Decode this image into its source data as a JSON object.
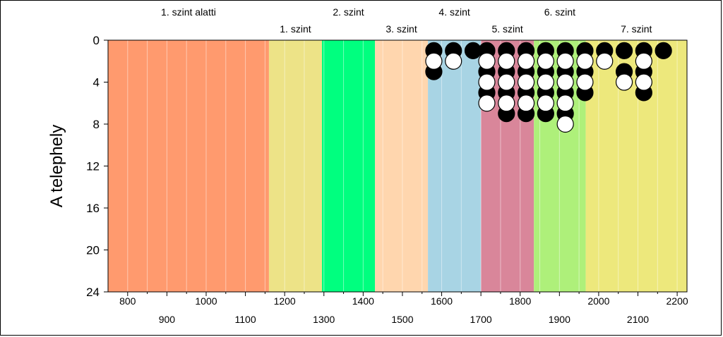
{
  "chart_data": {
    "type": "scatter",
    "title": "",
    "ylabel": "A telephely",
    "xlabel": "",
    "xlim": [
      750,
      2225
    ],
    "ylim": [
      0,
      24
    ],
    "y_inverted": true,
    "y_ticks": [
      0,
      4,
      8,
      12,
      16,
      20,
      24
    ],
    "x_ticks_lower": [
      800,
      1000,
      1200,
      1400,
      1600,
      1800,
      2000,
      2200
    ],
    "x_ticks_upper": [
      900,
      1100,
      1300,
      1500,
      1700,
      1900,
      2100
    ],
    "minor_gridlines": true,
    "levels": [
      {
        "label": "1. szint alatti",
        "start": 750,
        "end": 1160,
        "color": "#FF9A6E",
        "label_row": "top"
      },
      {
        "label": "1. szint",
        "start": 1160,
        "end": 1295,
        "color": "#EDE387",
        "label_row": "bottom"
      },
      {
        "label": "2. szint",
        "start": 1295,
        "end": 1430,
        "color": "#00FF7F",
        "label_row": "top"
      },
      {
        "label": "3. szint",
        "start": 1430,
        "end": 1565,
        "color": "#FFD6AE",
        "label_row": "bottom"
      },
      {
        "label": "4. szint",
        "start": 1565,
        "end": 1700,
        "color": "#A8D4E4",
        "label_row": "top"
      },
      {
        "label": "5. szint",
        "start": 1700,
        "end": 1835,
        "color": "#D9869A",
        "label_row": "bottom"
      },
      {
        "label": "6. szint",
        "start": 1835,
        "end": 1967,
        "color": "#AEF07A",
        "label_row": "top"
      },
      {
        "label": "7. szint",
        "start": 1967,
        "end": 2225,
        "color": "#EDE87C",
        "label_row": "bottom"
      }
    ],
    "series": [
      {
        "fill": "black",
        "points": [
          [
            1580,
            1
          ],
          [
            1630,
            1
          ],
          [
            1680,
            1
          ],
          [
            1580,
            3
          ],
          [
            1715,
            1
          ],
          [
            1765,
            1
          ],
          [
            1815,
            1
          ],
          [
            1715,
            3
          ],
          [
            1765,
            3
          ],
          [
            1815,
            3
          ],
          [
            1715,
            5
          ],
          [
            1765,
            5
          ],
          [
            1815,
            5
          ],
          [
            1765,
            7
          ],
          [
            1815,
            7
          ],
          [
            1865,
            1
          ],
          [
            1915,
            1
          ],
          [
            1965,
            1
          ],
          [
            1865,
            3
          ],
          [
            1915,
            3
          ],
          [
            1965,
            3
          ],
          [
            1865,
            5
          ],
          [
            1915,
            5
          ],
          [
            1965,
            5
          ],
          [
            1865,
            7
          ],
          [
            1915,
            7
          ],
          [
            2015,
            1
          ],
          [
            2065,
            1
          ],
          [
            2115,
            1
          ],
          [
            2165,
            1
          ],
          [
            2065,
            3
          ],
          [
            2115,
            3
          ],
          [
            2115,
            5
          ]
        ]
      },
      {
        "fill": "white",
        "points": [
          [
            1580,
            2
          ],
          [
            1630,
            2
          ],
          [
            1715,
            2
          ],
          [
            1765,
            2
          ],
          [
            1815,
            2
          ],
          [
            1715,
            4
          ],
          [
            1765,
            4
          ],
          [
            1815,
            4
          ],
          [
            1715,
            6
          ],
          [
            1765,
            6
          ],
          [
            1815,
            6
          ],
          [
            1865,
            2
          ],
          [
            1915,
            2
          ],
          [
            1965,
            2
          ],
          [
            1865,
            4
          ],
          [
            1915,
            4
          ],
          [
            1965,
            4
          ],
          [
            1865,
            6
          ],
          [
            1915,
            6
          ],
          [
            1915,
            8
          ],
          [
            2015,
            2
          ],
          [
            2115,
            2
          ],
          [
            2065,
            4
          ],
          [
            2115,
            4
          ]
        ]
      }
    ]
  }
}
